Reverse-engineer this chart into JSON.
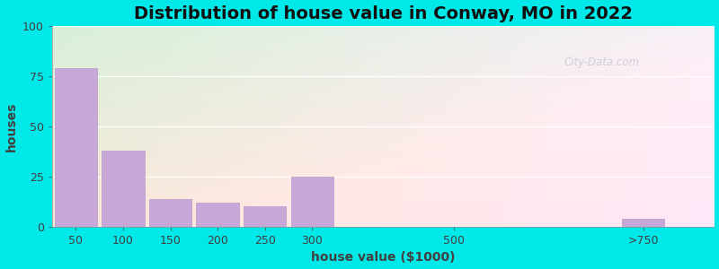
{
  "title": "Distribution of house value in Conway, MO in 2022",
  "xlabel": "house value ($1000)",
  "ylabel": "houses",
  "bar_labels": [
    "50",
    "100",
    "150",
    "200",
    "250",
    "300",
    "500",
    ">750"
  ],
  "bar_values": [
    79,
    38,
    14,
    12,
    10,
    25,
    0,
    4
  ],
  "bar_color": "#c8a8d8",
  "bar_edgecolor": "#b898c8",
  "ylim": [
    0,
    100
  ],
  "yticks": [
    0,
    25,
    50,
    75,
    100
  ],
  "background_color": "#00e8e8",
  "plot_bg_color_topleft": "#d8f0d8",
  "plot_bg_color_bottomright": "#f8f0f8",
  "title_fontsize": 14,
  "axis_label_fontsize": 10,
  "tick_fontsize": 9,
  "watermark_text": "City-Data.com",
  "watermark_color": "#c8c8d8",
  "x_positions": [
    0,
    1,
    2,
    3,
    4,
    5,
    8,
    12
  ],
  "bar_width": 0.9,
  "xlim": [
    -0.5,
    13.5
  ]
}
